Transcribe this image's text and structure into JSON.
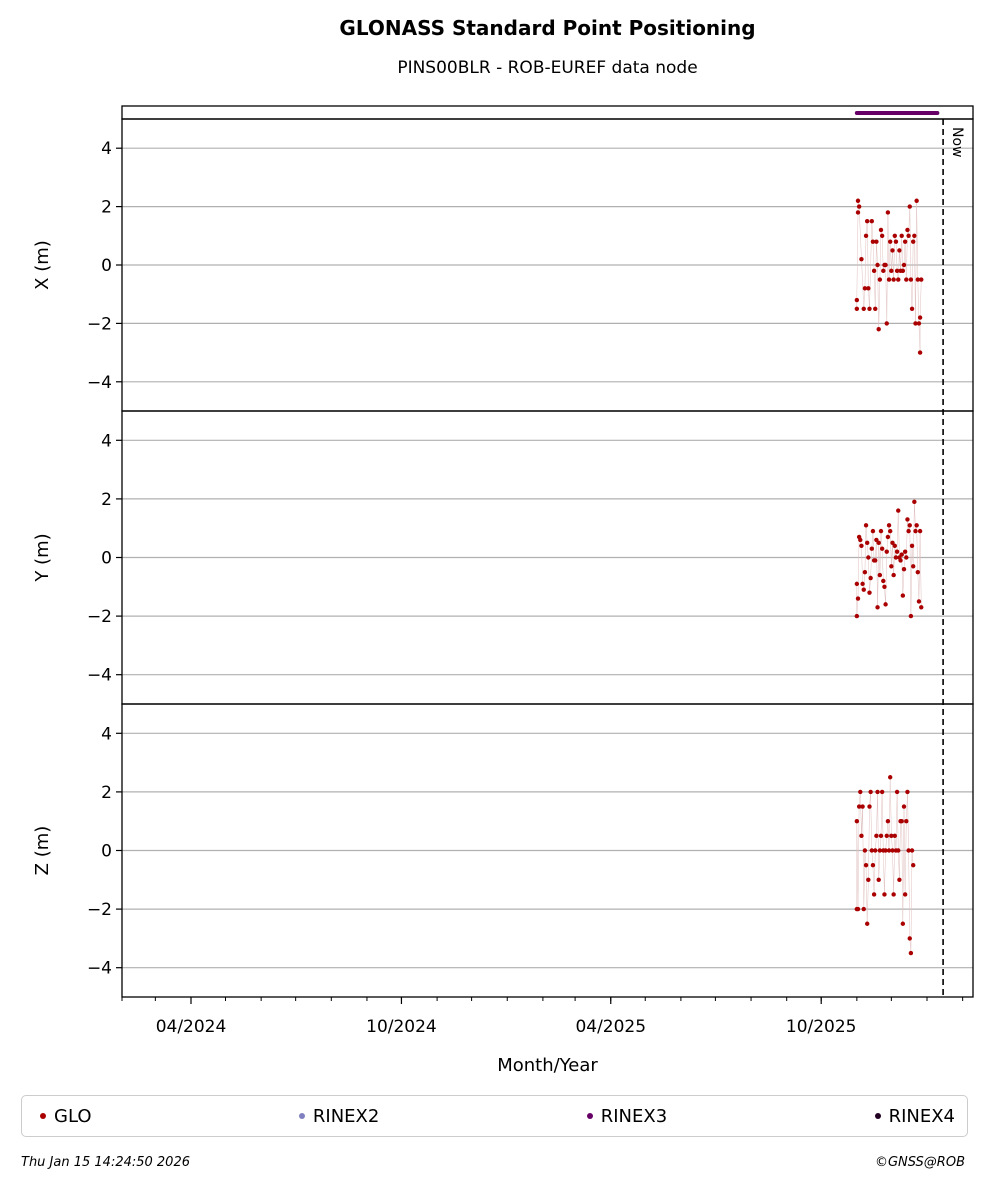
{
  "header": {
    "title": "GLONASS Standard Point Positioning",
    "subtitle": "PINS00BLR - ROB-EUREF data node"
  },
  "legend": {
    "items": [
      {
        "label": "GLO",
        "color": "#aa0000"
      },
      {
        "label": "RINEX2",
        "color": "#8080c0"
      },
      {
        "label": "RINEX3",
        "color": "#660066"
      },
      {
        "label": "RINEX4",
        "color": "#220022"
      }
    ]
  },
  "footer": {
    "timestamp": "Thu Jan 15 14:24:50 2026",
    "credit": "©GNSS@ROB"
  },
  "chart_data": {
    "type": "scatter",
    "xlabel": "Month/Year",
    "x_ticks": [
      "04/2024",
      "10/2024",
      "04/2025",
      "10/2025"
    ],
    "x_tick_dates": [
      "2024-04-01",
      "2024-10-01",
      "2025-04-01",
      "2025-10-01"
    ],
    "xlim": [
      "2024-02-01",
      "2026-02-10"
    ],
    "now_date": "2026-01-15",
    "now_label": "Now",
    "ylim": [
      -5,
      5
    ],
    "y_ticks": [
      -4,
      -2,
      0,
      2,
      4
    ],
    "grid": true,
    "rinex3_availability": {
      "start": "2025-11-01",
      "end": "2026-01-10",
      "color": "#660066"
    },
    "panels": [
      {
        "ylabel": "X (m)",
        "series_color": "#aa0000",
        "points": [
          [
            "2025-11-01",
            -1.5
          ],
          [
            "2025-11-01",
            -1.2
          ],
          [
            "2025-11-02",
            1.8
          ],
          [
            "2025-11-02",
            2.2
          ],
          [
            "2025-11-03",
            2.0
          ],
          [
            "2025-11-05",
            0.2
          ],
          [
            "2025-11-07",
            -1.5
          ],
          [
            "2025-11-08",
            -0.8
          ],
          [
            "2025-11-09",
            1.0
          ],
          [
            "2025-11-10",
            1.5
          ],
          [
            "2025-11-11",
            -0.8
          ],
          [
            "2025-11-12",
            -1.5
          ],
          [
            "2025-11-14",
            1.5
          ],
          [
            "2025-11-15",
            0.8
          ],
          [
            "2025-11-16",
            -0.2
          ],
          [
            "2025-11-17",
            -1.5
          ],
          [
            "2025-11-18",
            0.8
          ],
          [
            "2025-11-19",
            0.0
          ],
          [
            "2025-11-20",
            -2.2
          ],
          [
            "2025-11-21",
            -0.5
          ],
          [
            "2025-11-22",
            1.2
          ],
          [
            "2025-11-23",
            1.0
          ],
          [
            "2025-11-24",
            -0.2
          ],
          [
            "2025-11-25",
            0.0
          ],
          [
            "2025-11-26",
            0.0
          ],
          [
            "2025-11-27",
            -2.0
          ],
          [
            "2025-11-28",
            1.8
          ],
          [
            "2025-11-29",
            -0.5
          ],
          [
            "2025-11-30",
            0.8
          ],
          [
            "2025-12-01",
            -0.2
          ],
          [
            "2025-12-02",
            0.5
          ],
          [
            "2025-12-03",
            -0.5
          ],
          [
            "2025-12-04",
            1.0
          ],
          [
            "2025-12-05",
            0.8
          ],
          [
            "2025-12-06",
            -0.2
          ],
          [
            "2025-12-07",
            -0.5
          ],
          [
            "2025-12-08",
            0.5
          ],
          [
            "2025-12-09",
            -0.2
          ],
          [
            "2025-12-10",
            1.0
          ],
          [
            "2025-12-11",
            -0.2
          ],
          [
            "2025-12-12",
            0.0
          ],
          [
            "2025-12-13",
            0.8
          ],
          [
            "2025-12-14",
            -0.5
          ],
          [
            "2025-12-15",
            1.2
          ],
          [
            "2025-12-16",
            1.0
          ],
          [
            "2025-12-17",
            2.0
          ],
          [
            "2025-12-18",
            -0.5
          ],
          [
            "2025-12-19",
            -1.5
          ],
          [
            "2025-12-20",
            0.8
          ],
          [
            "2025-12-21",
            1.0
          ],
          [
            "2025-12-22",
            -2.0
          ],
          [
            "2025-12-23",
            2.2
          ],
          [
            "2025-12-24",
            -0.5
          ],
          [
            "2025-12-25",
            -2.0
          ],
          [
            "2025-12-26",
            -3.0
          ],
          [
            "2025-12-26",
            -1.8
          ],
          [
            "2025-12-27",
            -0.5
          ]
        ]
      },
      {
        "ylabel": "Y (m)",
        "series_color": "#aa0000",
        "points": [
          [
            "2025-11-01",
            -0.9
          ],
          [
            "2025-11-01",
            -2.0
          ],
          [
            "2025-11-02",
            -1.4
          ],
          [
            "2025-11-03",
            0.7
          ],
          [
            "2025-11-04",
            0.6
          ],
          [
            "2025-11-05",
            0.4
          ],
          [
            "2025-11-06",
            -0.9
          ],
          [
            "2025-11-07",
            -1.1
          ],
          [
            "2025-11-08",
            -0.5
          ],
          [
            "2025-11-09",
            1.1
          ],
          [
            "2025-11-10",
            0.5
          ],
          [
            "2025-11-11",
            0.0
          ],
          [
            "2025-11-12",
            -1.2
          ],
          [
            "2025-11-13",
            -0.7
          ],
          [
            "2025-11-14",
            0.3
          ],
          [
            "2025-11-15",
            0.9
          ],
          [
            "2025-11-16",
            -0.1
          ],
          [
            "2025-11-17",
            -0.1
          ],
          [
            "2025-11-18",
            0.6
          ],
          [
            "2025-11-19",
            -1.7
          ],
          [
            "2025-11-20",
            0.5
          ],
          [
            "2025-11-21",
            -0.6
          ],
          [
            "2025-11-22",
            0.9
          ],
          [
            "2025-11-23",
            0.3
          ],
          [
            "2025-11-24",
            -0.8
          ],
          [
            "2025-11-25",
            -1.0
          ],
          [
            "2025-11-26",
            -1.6
          ],
          [
            "2025-11-27",
            0.2
          ],
          [
            "2025-11-28",
            0.7
          ],
          [
            "2025-11-29",
            1.1
          ],
          [
            "2025-11-30",
            0.9
          ],
          [
            "2025-12-01",
            -0.3
          ],
          [
            "2025-12-02",
            0.5
          ],
          [
            "2025-12-03",
            -0.6
          ],
          [
            "2025-12-04",
            0.4
          ],
          [
            "2025-12-05",
            0.0
          ],
          [
            "2025-12-06",
            0.2
          ],
          [
            "2025-12-07",
            1.6
          ],
          [
            "2025-12-08",
            0.0
          ],
          [
            "2025-12-09",
            -0.1
          ],
          [
            "2025-12-10",
            0.1
          ],
          [
            "2025-12-11",
            -1.3
          ],
          [
            "2025-12-12",
            -0.4
          ],
          [
            "2025-12-13",
            0.2
          ],
          [
            "2025-12-14",
            0.0
          ],
          [
            "2025-12-15",
            1.3
          ],
          [
            "2025-12-16",
            0.9
          ],
          [
            "2025-12-17",
            1.1
          ],
          [
            "2025-12-18",
            -2.0
          ],
          [
            "2025-12-19",
            0.4
          ],
          [
            "2025-12-20",
            -0.3
          ],
          [
            "2025-12-21",
            1.9
          ],
          [
            "2025-12-22",
            0.9
          ],
          [
            "2025-12-23",
            1.1
          ],
          [
            "2025-12-24",
            -0.5
          ],
          [
            "2025-12-25",
            -1.5
          ],
          [
            "2025-12-26",
            0.9
          ],
          [
            "2025-12-27",
            -1.7
          ]
        ]
      },
      {
        "ylabel": "Z (m)",
        "series_color": "#aa0000",
        "points": [
          [
            "2025-11-01",
            -2.0
          ],
          [
            "2025-11-01",
            1.0
          ],
          [
            "2025-11-02",
            -2.0
          ],
          [
            "2025-11-03",
            1.5
          ],
          [
            "2025-11-04",
            2.0
          ],
          [
            "2025-11-05",
            0.5
          ],
          [
            "2025-11-06",
            1.5
          ],
          [
            "2025-11-07",
            -2.0
          ],
          [
            "2025-11-08",
            0.0
          ],
          [
            "2025-11-09",
            -0.5
          ],
          [
            "2025-11-10",
            -2.5
          ],
          [
            "2025-11-11",
            -1.0
          ],
          [
            "2025-11-12",
            1.5
          ],
          [
            "2025-11-13",
            2.0
          ],
          [
            "2025-11-14",
            0.0
          ],
          [
            "2025-11-15",
            -0.5
          ],
          [
            "2025-11-16",
            -1.5
          ],
          [
            "2025-11-17",
            0.0
          ],
          [
            "2025-11-18",
            0.5
          ],
          [
            "2025-11-19",
            2.0
          ],
          [
            "2025-11-20",
            -1.0
          ],
          [
            "2025-11-21",
            0.0
          ],
          [
            "2025-11-22",
            0.5
          ],
          [
            "2025-11-23",
            2.0
          ],
          [
            "2025-11-24",
            0.0
          ],
          [
            "2025-11-25",
            -1.5
          ],
          [
            "2025-11-26",
            0.0
          ],
          [
            "2025-11-27",
            0.5
          ],
          [
            "2025-11-28",
            1.0
          ],
          [
            "2025-11-29",
            0.0
          ],
          [
            "2025-11-30",
            2.5
          ],
          [
            "2025-12-01",
            0.5
          ],
          [
            "2025-12-02",
            0.0
          ],
          [
            "2025-12-03",
            -1.5
          ],
          [
            "2025-12-04",
            0.5
          ],
          [
            "2025-12-05",
            0.0
          ],
          [
            "2025-12-06",
            2.0
          ],
          [
            "2025-12-07",
            0.0
          ],
          [
            "2025-12-08",
            -1.0
          ],
          [
            "2025-12-09",
            1.0
          ],
          [
            "2025-12-10",
            1.0
          ],
          [
            "2025-12-11",
            -2.5
          ],
          [
            "2025-12-12",
            1.5
          ],
          [
            "2025-12-13",
            -1.5
          ],
          [
            "2025-12-14",
            1.0
          ],
          [
            "2025-12-15",
            2.0
          ],
          [
            "2025-12-16",
            0.0
          ],
          [
            "2025-12-17",
            -3.0
          ],
          [
            "2025-12-18",
            -3.5
          ],
          [
            "2025-12-19",
            0.0
          ],
          [
            "2025-12-20",
            -0.5
          ]
        ]
      }
    ]
  }
}
